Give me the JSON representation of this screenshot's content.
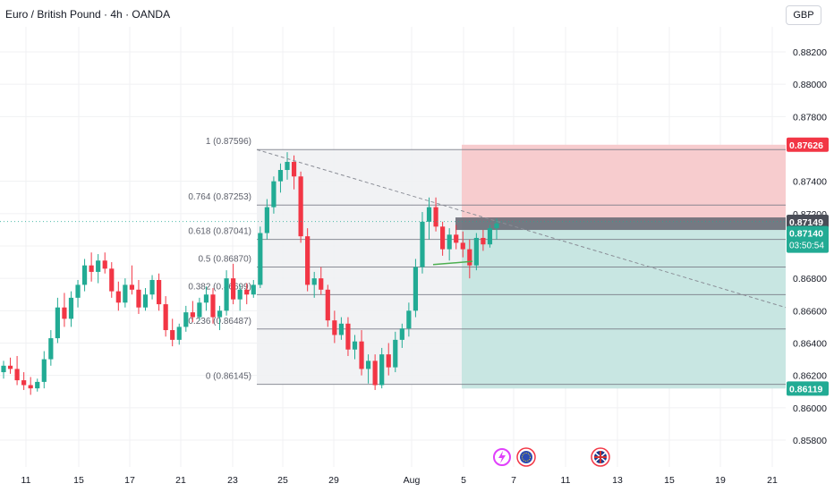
{
  "header": {
    "title": "Euro / British Pound · 4h · OANDA",
    "currency": "GBP"
  },
  "colors": {
    "up": "#22ab94",
    "down": "#f23645",
    "fib_zone": "#f0f1f3",
    "stop_zone": "#f7c9cb",
    "target_zone": "#c5e5e0",
    "entry_band": "#6a6d78",
    "trendline": "#8a8d96",
    "green_line": "#4caf50",
    "label_red": "#f23645",
    "label_dark": "#4a4d57",
    "label_green": "#22ab94"
  },
  "price_labels": {
    "stop": "0.87626",
    "target": "0.86119",
    "entry": "0.87149",
    "last": "0.87140",
    "countdown": "03:50:54"
  },
  "fib_levels": [
    {
      "label": "1 (0.87596)",
      "price": 0.87596
    },
    {
      "label": "0.764 (0.87253)",
      "price": 0.87253
    },
    {
      "label": "0.618 (0.87041)",
      "price": 0.87041
    },
    {
      "label": "0.5 (0.86870)",
      "price": 0.8687
    },
    {
      "label": "0.382 (0.86699)",
      "price": 0.86699
    },
    {
      "label": "0.236 (0.86487)",
      "price": 0.86487
    },
    {
      "label": "0 (0.86145)",
      "price": 0.86145
    }
  ],
  "event_icons": [
    "lightning-event-icon",
    "eu-flag-icon",
    "uk-flag-icon"
  ],
  "chart_data": {
    "type": "candlestick",
    "symbol": "Euro / British Pound · 4h · OANDA",
    "ylim": [
      0.8574,
      0.8833
    ],
    "y_ticks": [
      "0.88200",
      "0.88000",
      "0.87800",
      "0.87400",
      "0.87200",
      "0.87000",
      "0.86800",
      "0.86600",
      "0.86400",
      "0.86200",
      "0.86000",
      "0.85800"
    ],
    "x_ticks": [
      "11",
      "15",
      "17",
      "21",
      "23",
      "25",
      "29",
      "Aug",
      "5",
      "7",
      "11",
      "13",
      "15",
      "19",
      "21"
    ],
    "candles_ohlc": [
      [
        0.8622,
        0.8629,
        0.8618,
        0.8626
      ],
      [
        0.8626,
        0.8631,
        0.8621,
        0.8624
      ],
      [
        0.8624,
        0.8632,
        0.8614,
        0.8617
      ],
      [
        0.8617,
        0.8622,
        0.8611,
        0.8614
      ],
      [
        0.8614,
        0.8619,
        0.8608,
        0.8612
      ],
      [
        0.8612,
        0.8618,
        0.861,
        0.8616
      ],
      [
        0.8616,
        0.8635,
        0.8612,
        0.863
      ],
      [
        0.863,
        0.8648,
        0.8626,
        0.8643
      ],
      [
        0.8643,
        0.8668,
        0.864,
        0.8662
      ],
      [
        0.8662,
        0.8671,
        0.865,
        0.8655
      ],
      [
        0.8655,
        0.8672,
        0.865,
        0.8668
      ],
      [
        0.8668,
        0.8679,
        0.8662,
        0.8676
      ],
      [
        0.8676,
        0.8692,
        0.8672,
        0.8688
      ],
      [
        0.8688,
        0.8696,
        0.8678,
        0.8684
      ],
      [
        0.8684,
        0.8695,
        0.8677,
        0.8691
      ],
      [
        0.8691,
        0.8696,
        0.8683,
        0.8686
      ],
      [
        0.8686,
        0.869,
        0.8668,
        0.8672
      ],
      [
        0.8672,
        0.8678,
        0.866,
        0.8665
      ],
      [
        0.8665,
        0.868,
        0.8662,
        0.8676
      ],
      [
        0.8676,
        0.8688,
        0.867,
        0.8673
      ],
      [
        0.8673,
        0.8679,
        0.8658,
        0.8662
      ],
      [
        0.8662,
        0.8674,
        0.866,
        0.867
      ],
      [
        0.867,
        0.8682,
        0.8667,
        0.8679
      ],
      [
        0.8679,
        0.8683,
        0.866,
        0.8664
      ],
      [
        0.8664,
        0.8669,
        0.8644,
        0.8648
      ],
      [
        0.8648,
        0.8655,
        0.8638,
        0.8642
      ],
      [
        0.8642,
        0.8652,
        0.8639,
        0.865
      ],
      [
        0.865,
        0.8663,
        0.8647,
        0.8659
      ],
      [
        0.8659,
        0.8666,
        0.8653,
        0.8656
      ],
      [
        0.8656,
        0.8668,
        0.8654,
        0.8665
      ],
      [
        0.8665,
        0.8675,
        0.866,
        0.867
      ],
      [
        0.867,
        0.8674,
        0.8652,
        0.8656
      ],
      [
        0.8656,
        0.8663,
        0.8648,
        0.866
      ],
      [
        0.866,
        0.8685,
        0.8657,
        0.868
      ],
      [
        0.868,
        0.8689,
        0.8664,
        0.8667
      ],
      [
        0.8667,
        0.8676,
        0.866,
        0.8673
      ],
      [
        0.8673,
        0.8677,
        0.8664,
        0.867
      ],
      [
        0.867,
        0.8679,
        0.8668,
        0.8676
      ],
      [
        0.8676,
        0.8712,
        0.8674,
        0.8708
      ],
      [
        0.8708,
        0.8729,
        0.8704,
        0.8724
      ],
      [
        0.8724,
        0.8743,
        0.872,
        0.874
      ],
      [
        0.874,
        0.8751,
        0.8733,
        0.8747
      ],
      [
        0.8747,
        0.8758,
        0.8741,
        0.8752
      ],
      [
        0.8752,
        0.8756,
        0.8735,
        0.8743
      ],
      [
        0.8743,
        0.8746,
        0.8702,
        0.8706
      ],
      [
        0.8706,
        0.8711,
        0.8672,
        0.8676
      ],
      [
        0.8676,
        0.8684,
        0.8668,
        0.868
      ],
      [
        0.868,
        0.8687,
        0.867,
        0.8673
      ],
      [
        0.8673,
        0.8676,
        0.865,
        0.8654
      ],
      [
        0.8654,
        0.866,
        0.864,
        0.8645
      ],
      [
        0.8645,
        0.8656,
        0.8642,
        0.8652
      ],
      [
        0.8652,
        0.8656,
        0.8632,
        0.8636
      ],
      [
        0.8636,
        0.8645,
        0.863,
        0.8641
      ],
      [
        0.8641,
        0.8648,
        0.862,
        0.8624
      ],
      [
        0.8624,
        0.8633,
        0.8615,
        0.8629
      ],
      [
        0.8629,
        0.8633,
        0.8611,
        0.8614
      ],
      [
        0.8614,
        0.8637,
        0.8612,
        0.8633
      ],
      [
        0.8633,
        0.864,
        0.862,
        0.8625
      ],
      [
        0.8625,
        0.8647,
        0.8622,
        0.8642
      ],
      [
        0.8642,
        0.8652,
        0.8637,
        0.8649
      ],
      [
        0.8649,
        0.8665,
        0.8644,
        0.866
      ],
      [
        0.866,
        0.8692,
        0.8656,
        0.8687
      ],
      [
        0.8687,
        0.8721,
        0.8683,
        0.8715
      ],
      [
        0.8715,
        0.873,
        0.8704,
        0.8724
      ],
      [
        0.8724,
        0.873,
        0.8709,
        0.8712
      ],
      [
        0.8712,
        0.8715,
        0.8694,
        0.8698
      ],
      [
        0.8698,
        0.8711,
        0.8691,
        0.8707
      ],
      [
        0.8707,
        0.8713,
        0.8698,
        0.8702
      ],
      [
        0.8702,
        0.8709,
        0.8693,
        0.8698
      ],
      [
        0.8698,
        0.8704,
        0.868,
        0.8688
      ],
      [
        0.8688,
        0.8708,
        0.8685,
        0.8705
      ],
      [
        0.8705,
        0.871,
        0.8697,
        0.8701
      ],
      [
        0.8701,
        0.8713,
        0.8699,
        0.8711
      ],
      [
        0.8711,
        0.8717,
        0.8704,
        0.8714
      ]
    ],
    "fib_retracement": [
      1,
      0.764,
      0.618,
      0.5,
      0.382,
      0.236,
      0
    ],
    "position": {
      "stop": 0.87626,
      "entry": 0.87149,
      "target": 0.86119
    }
  }
}
